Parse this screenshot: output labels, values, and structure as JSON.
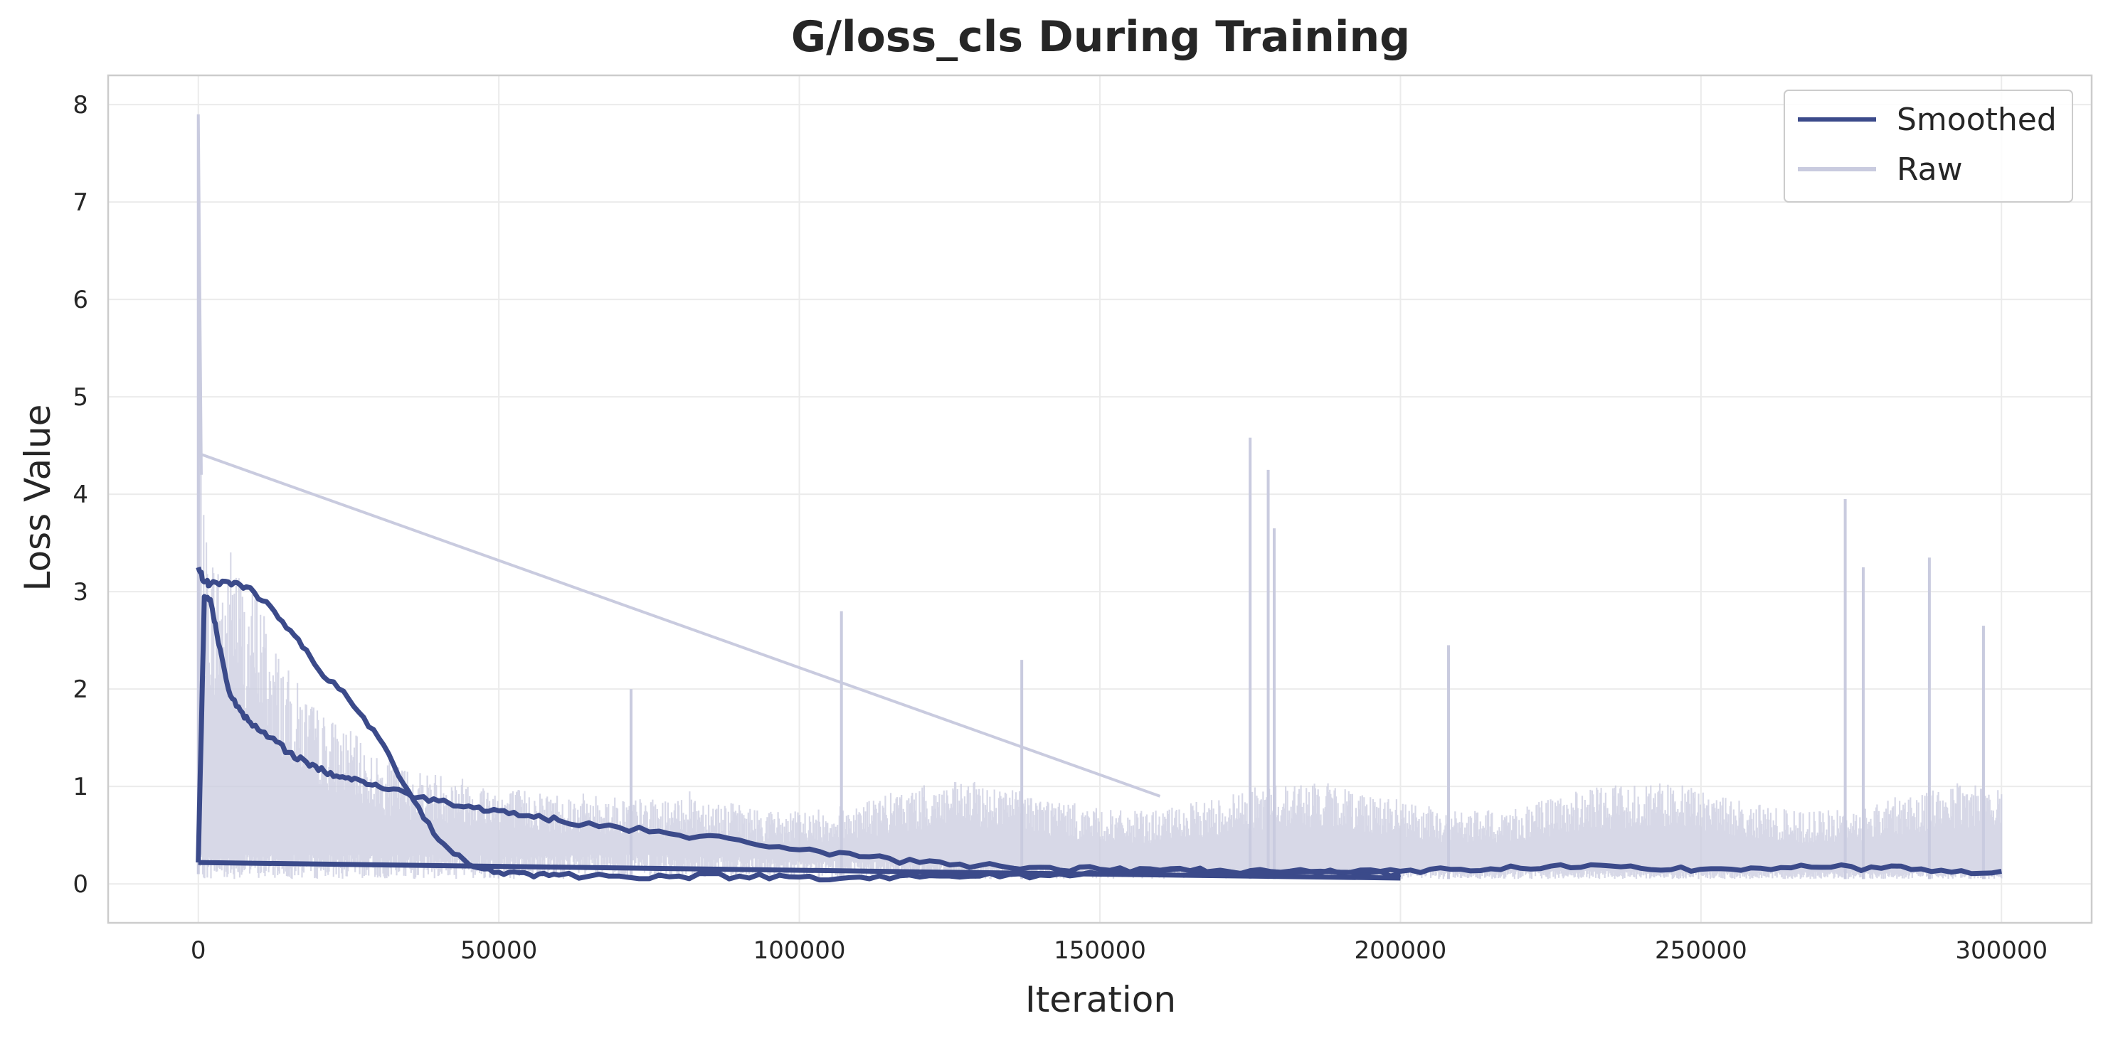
{
  "chart_data": {
    "type": "line",
    "title": "G/loss_cls During Training",
    "xlabel": "Iteration",
    "ylabel": "Loss Value",
    "xlim": [
      -15000,
      315000
    ],
    "ylim": [
      -0.4,
      8.3
    ],
    "xticks": [
      0,
      50000,
      100000,
      150000,
      200000,
      250000,
      300000
    ],
    "xtick_labels": [
      "0",
      "50000",
      "100000",
      "150000",
      "200000",
      "250000",
      "300000"
    ],
    "yticks": [
      0,
      1,
      2,
      3,
      4,
      5,
      6,
      7,
      8
    ],
    "ytick_labels": [
      "0",
      "1",
      "2",
      "3",
      "4",
      "5",
      "6",
      "7",
      "8"
    ],
    "grid": true,
    "legend_position": "top-right",
    "series": [
      {
        "name": "Smoothed",
        "color": "#3b4a8a",
        "segments": [
          {
            "x": [
              0,
              1000,
              2000,
              3000,
              5000,
              7000,
              9000,
              12000,
              15000,
              18000,
              21000,
              24000,
              27000,
              30000,
              35000,
              40000,
              45000,
              50000,
              55000,
              60000,
              70000,
              80000,
              90000,
              100000,
              110000,
              120000,
              130000,
              140000,
              150000,
              160000,
              170000,
              180000,
              190000,
              200000
            ],
            "y": [
              0.22,
              2.95,
              2.92,
              2.6,
              2.0,
              1.78,
              1.62,
              1.5,
              1.35,
              1.25,
              1.15,
              1.1,
              1.06,
              1.0,
              0.92,
              0.85,
              0.8,
              0.75,
              0.7,
              0.65,
              0.58,
              0.5,
              0.45,
              0.35,
              0.28,
              0.22,
              0.19,
              0.17,
              0.15,
              0.14,
              0.13,
              0.12,
              0.11,
              0.1
            ]
          },
          {
            "x": [
              0,
              1000,
              2000,
              5000,
              8000,
              12000,
              16000,
              20000,
              25000,
              30000,
              35000,
              40000,
              45000,
              50000,
              55000,
              60000,
              70000,
              80000,
              90000,
              100000,
              110000,
              120000,
              130000,
              140000,
              150000
            ],
            "y": [
              3.25,
              3.1,
              3.08,
              3.1,
              3.05,
              2.85,
              2.55,
              2.2,
              1.9,
              1.5,
              0.95,
              0.45,
              0.2,
              0.12,
              0.1,
              0.09,
              0.08,
              0.08,
              0.08,
              0.07,
              0.07,
              0.07,
              0.08,
              0.09,
              0.1
            ]
          },
          {
            "x": [
              150000,
              170000,
              190000,
              200000,
              210000,
              220000,
              230000,
              240000,
              250000,
              260000,
              270000,
              280000,
              290000,
              300000
            ],
            "y": [
              0.13,
              0.14,
              0.12,
              0.13,
              0.15,
              0.16,
              0.17,
              0.16,
              0.15,
              0.16,
              0.17,
              0.16,
              0.14,
              0.13
            ]
          },
          {
            "x": [
              0,
              200000
            ],
            "y": [
              0.22,
              0.06
            ]
          }
        ]
      },
      {
        "name": "Raw",
        "color": "#c9cbdf",
        "segments": [
          {
            "x": [
              0,
              500,
              1000,
              2000,
              4000,
              6000,
              8000,
              10000,
              12000,
              15000,
              20000,
              25000,
              30000,
              35000,
              40000,
              45000,
              50000,
              60000,
              70000,
              80000
            ],
            "y": [
              7.9,
              4.2,
              3.7,
              3.5,
              3.3,
              3.6,
              3.0,
              3.1,
              2.6,
              2.2,
              1.8,
              1.6,
              1.3,
              1.2,
              1.15,
              1.1,
              1.0,
              0.95,
              0.9,
              0.85
            ]
          },
          {
            "x": [
              0,
              160000
            ],
            "y": [
              4.42,
              0.9
            ]
          },
          {
            "x": [
              72000,
              107000,
              137000,
              175000,
              178000,
              179000,
              208000,
              274000,
              277000,
              288000,
              297000
            ],
            "y": [
              2.0,
              2.8,
              2.3,
              4.58,
              4.25,
              3.65,
              2.45,
              3.95,
              3.25,
              3.35,
              2.65
            ]
          }
        ]
      }
    ]
  }
}
